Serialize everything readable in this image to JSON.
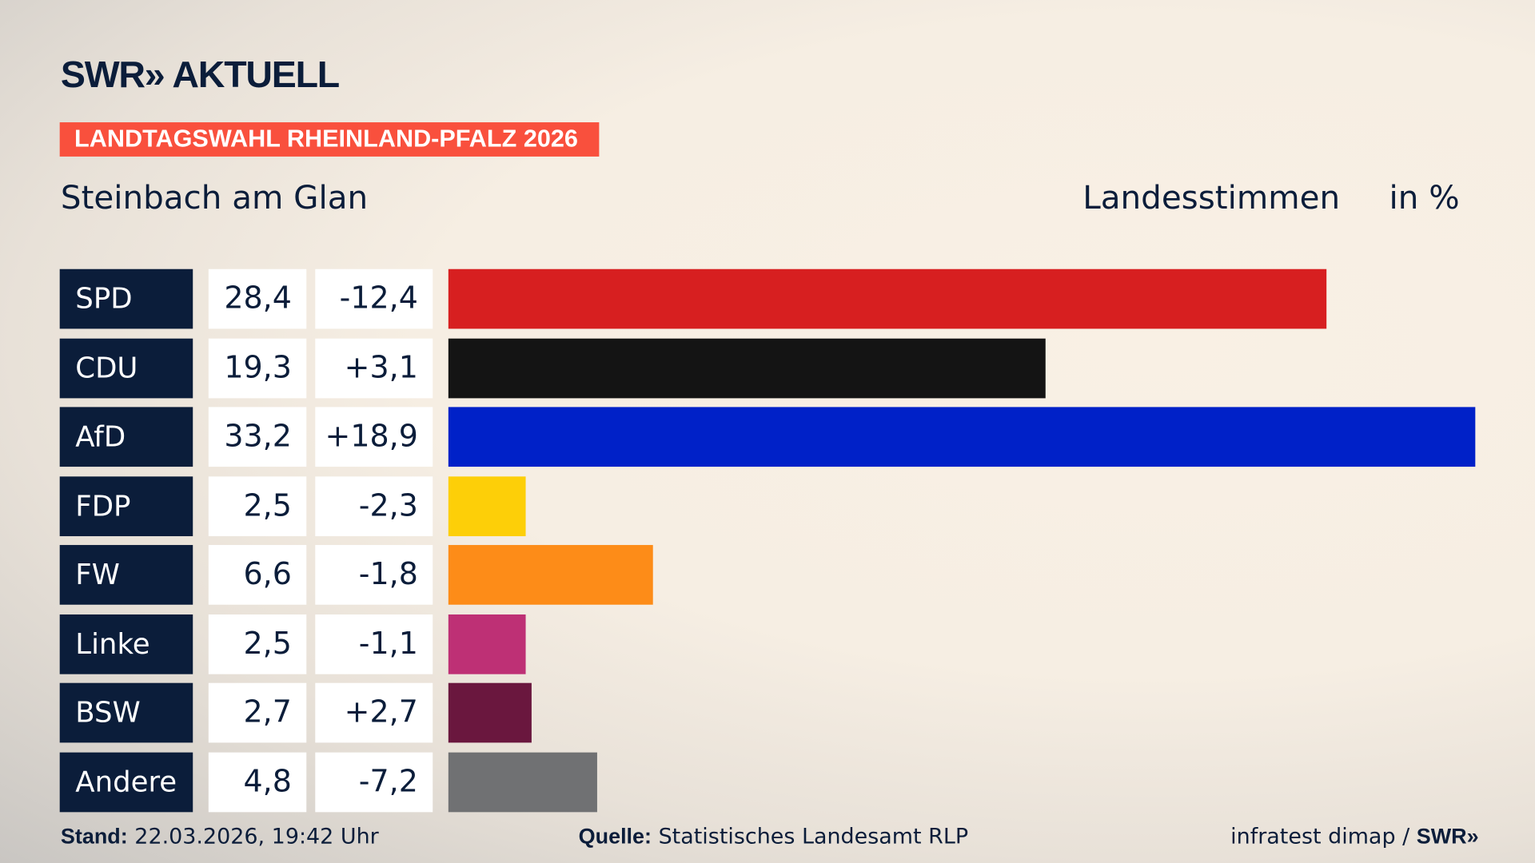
{
  "header": {
    "logo": "SWR» AKTUELL",
    "tag": "LANDTAGSWAHL RHEINLAND-PFALZ 2026",
    "place": "Steinbach am Glan",
    "measure": "Landesstimmen",
    "unit": "in %"
  },
  "chart_data": {
    "type": "bar",
    "orientation": "horizontal",
    "categories": [
      "SPD",
      "CDU",
      "AfD",
      "FDP",
      "FW",
      "Linke",
      "BSW",
      "Andere"
    ],
    "values": [
      28.4,
      19.3,
      33.2,
      2.5,
      6.6,
      2.5,
      2.7,
      4.8
    ],
    "value_labels": [
      "28,4",
      "19,3",
      "33,2",
      "2,5",
      "6,6",
      "2,5",
      "2,7",
      "4,8"
    ],
    "change_labels": [
      "-12,4",
      "+3,1",
      "+18,9",
      "-2,3",
      "-1,8",
      "-1,1",
      "+2,7",
      "-7,2"
    ],
    "changes": [
      -12.4,
      3.1,
      18.9,
      -2.3,
      -1.8,
      -1.1,
      2.7,
      -7.2
    ],
    "colors": [
      "#d71f20",
      "#141414",
      "#0021c8",
      "#fdcf08",
      "#fd8c18",
      "#be3075",
      "#6a173e",
      "#707173"
    ],
    "xlim": [
      0,
      33.2
    ]
  },
  "footer": {
    "stand_label": "Stand:",
    "stand": "22.03.2026, 19:42 Uhr",
    "source_label": "Quelle:",
    "source": "Statistisches Landesamt RLP",
    "credit": "infratest dimap / ",
    "credit_logo": "SWR»"
  }
}
